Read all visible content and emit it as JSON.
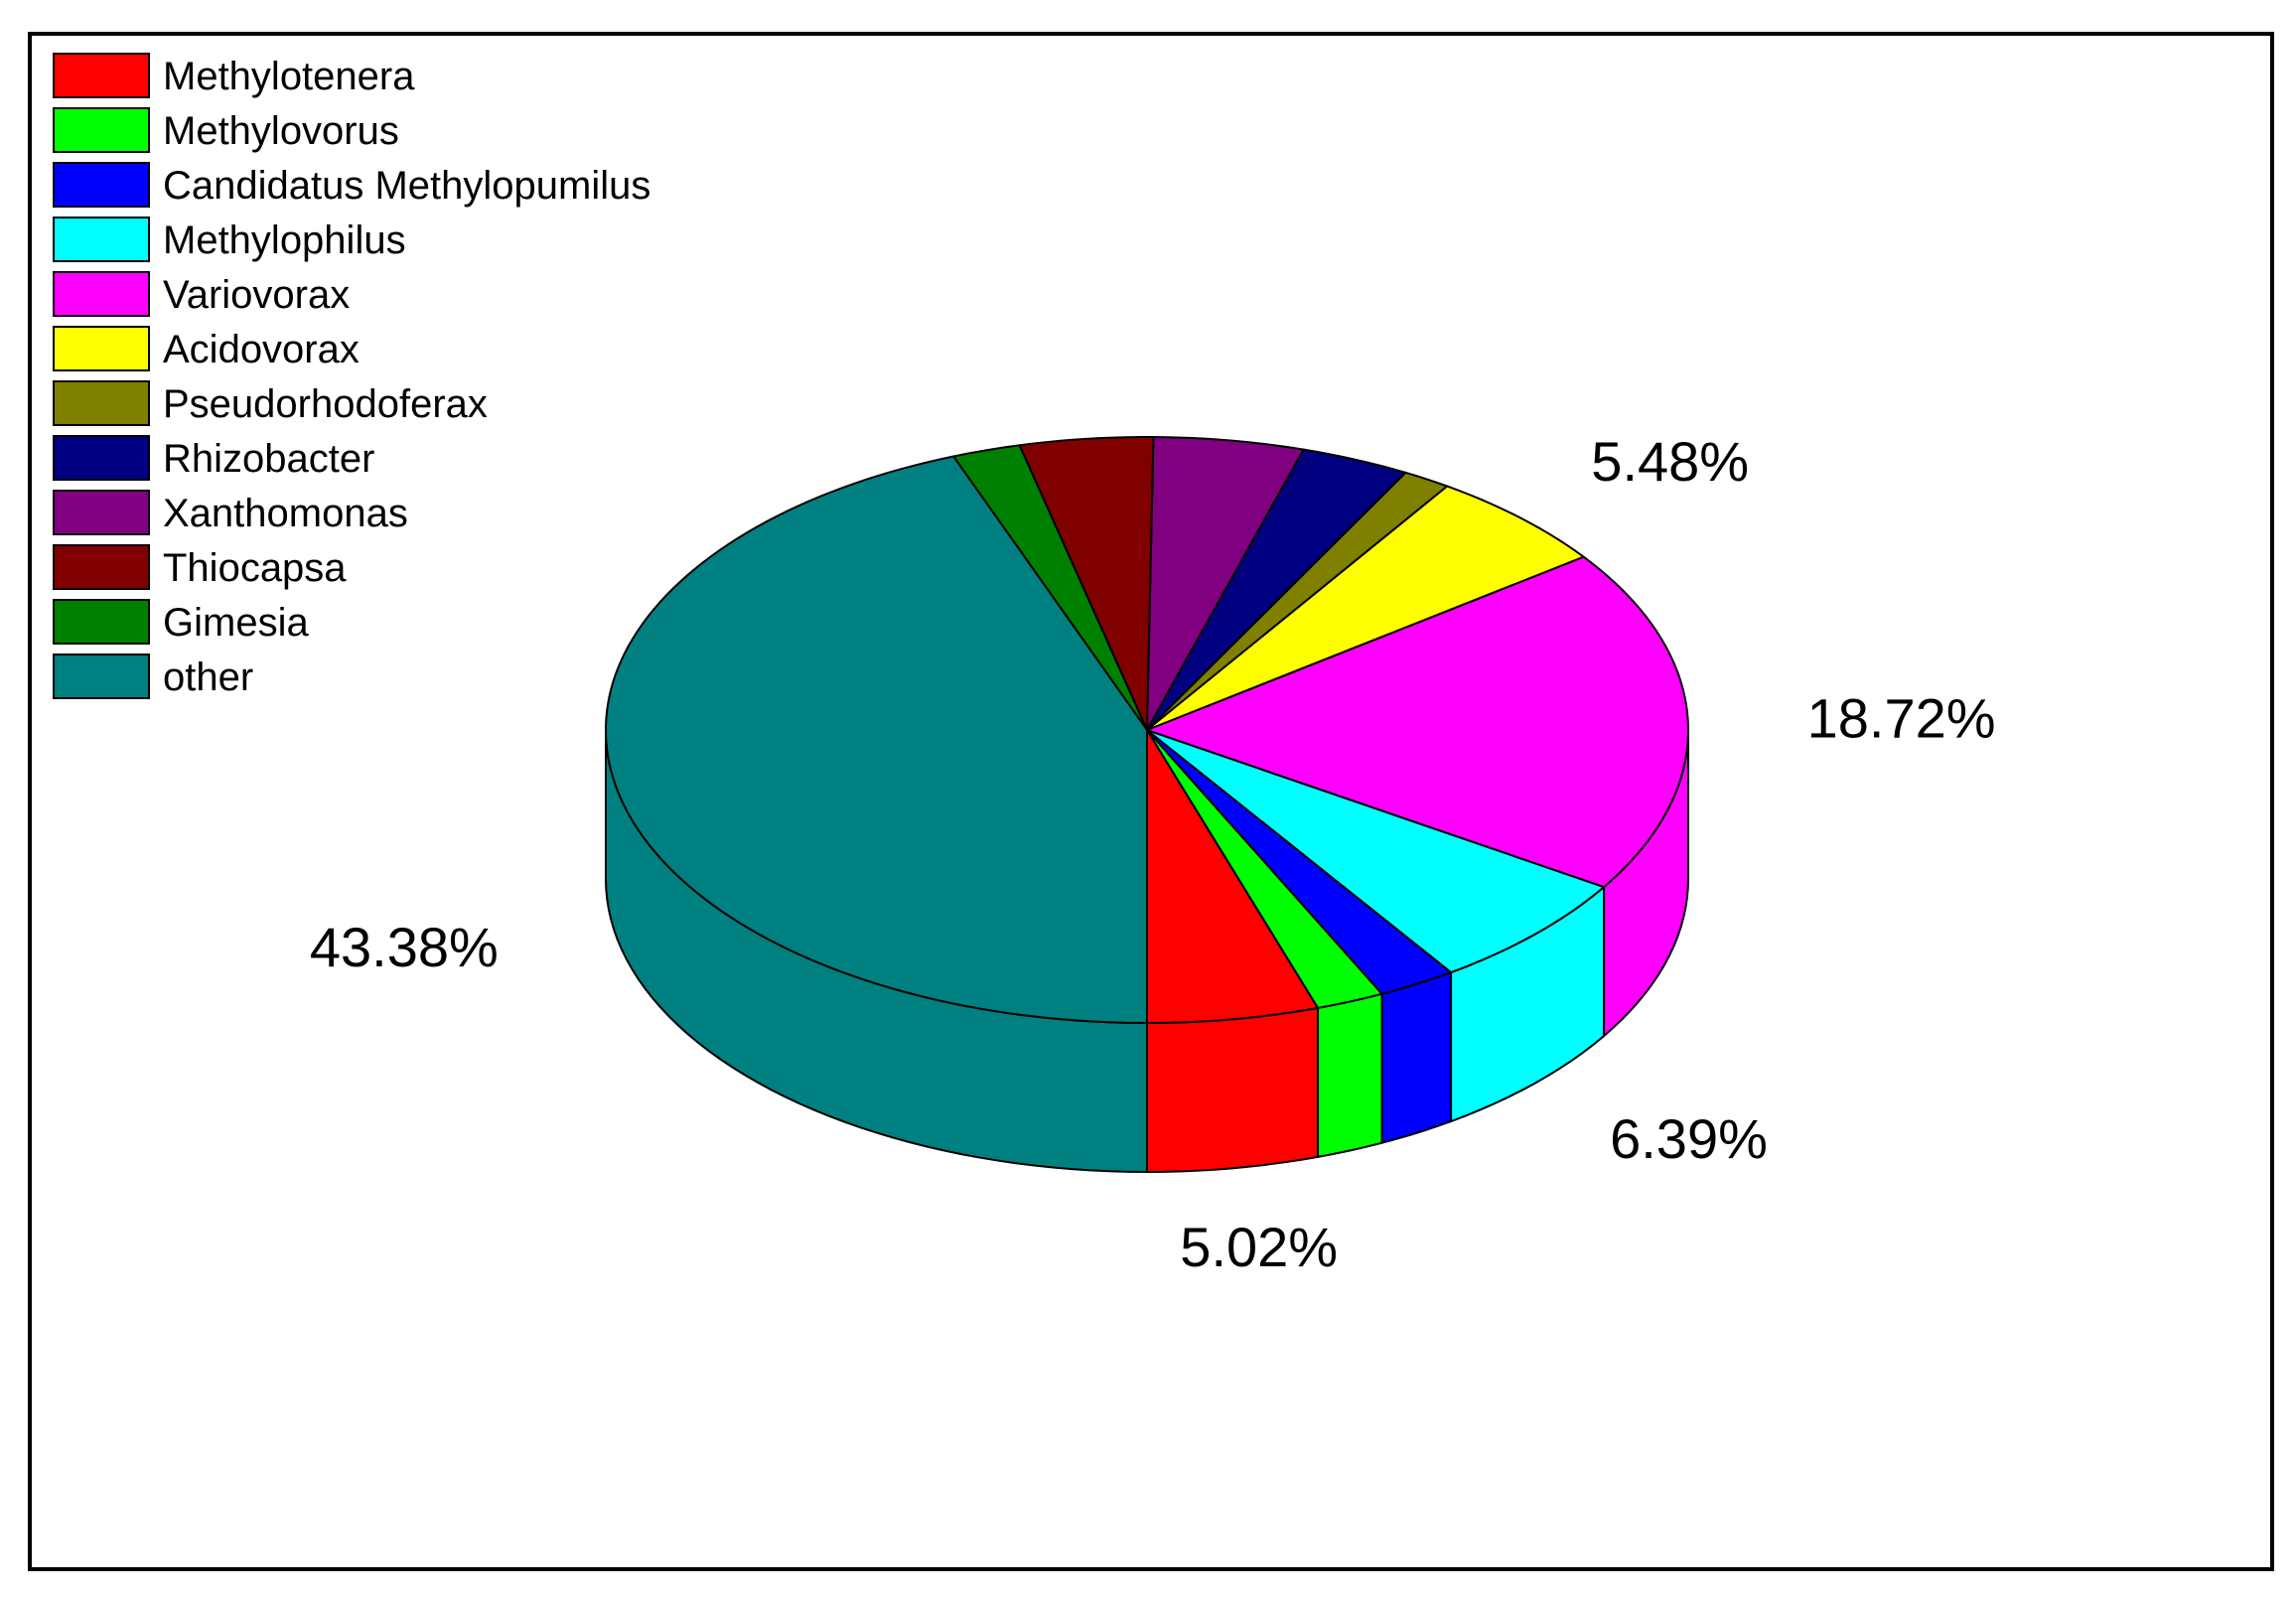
{
  "chart_data": {
    "type": "pie",
    "style": "3d",
    "legend_position": "top-left",
    "series": [
      {
        "name": "Methylotenera",
        "value": 5.02,
        "color": "#ff0000",
        "label": "5.02%"
      },
      {
        "name": "Methylovorus",
        "value": 2.0,
        "color": "#00ff00",
        "label": ""
      },
      {
        "name": "Candidatus Methylopumilus",
        "value": 2.3,
        "color": "#0000ff",
        "label": ""
      },
      {
        "name": "Methylophilus",
        "value": 6.39,
        "color": "#00ffff",
        "label": "6.39%"
      },
      {
        "name": "Variovorax",
        "value": 18.72,
        "color": "#ff00ff",
        "label": "18.72%"
      },
      {
        "name": "Acidovorax",
        "value": 5.48,
        "color": "#ffff00",
        "label": "5.48%"
      },
      {
        "name": "Pseudorhodoferax",
        "value": 1.4,
        "color": "#808000",
        "label": ""
      },
      {
        "name": "Rhizobacter",
        "value": 3.2,
        "color": "#000080",
        "label": ""
      },
      {
        "name": "Xanthomonas",
        "value": 4.4,
        "color": "#800080",
        "label": ""
      },
      {
        "name": "Thiocapsa",
        "value": 3.9,
        "color": "#800000",
        "label": ""
      },
      {
        "name": "Gimesia",
        "value": 2.0,
        "color": "#008000",
        "label": ""
      },
      {
        "name": "other",
        "value": 43.38,
        "color": "#008080",
        "label": "43.38%"
      }
    ]
  }
}
